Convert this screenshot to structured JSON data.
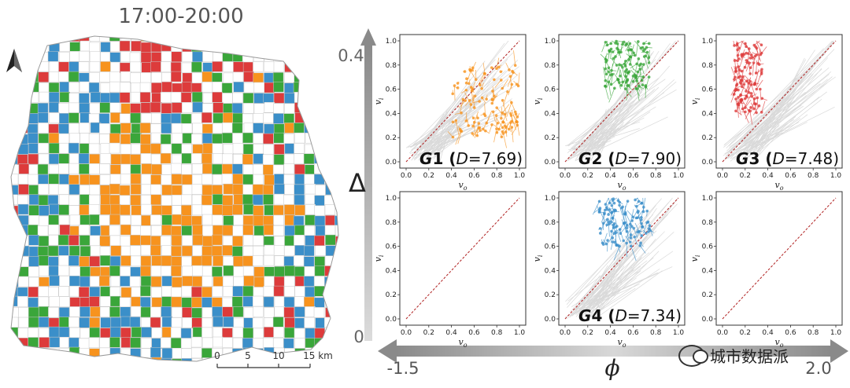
{
  "map": {
    "title": "17:00-20:00",
    "scale_ticks": [
      "0",
      "5",
      "10",
      "15 km"
    ],
    "colors": {
      "G1": "#f7931e",
      "G2": "#3aa63a",
      "G3": "#dd3b3b",
      "G4": "#3b8fc9",
      "empty": "#ffffff",
      "border": "#c8c8c8"
    }
  },
  "axes": {
    "vertical": {
      "symbol": "Δ",
      "top_label": "0.4",
      "bottom_label": "0"
    },
    "horizontal": {
      "symbol": "ϕ",
      "left_label": "-1.5",
      "right_label": "2.0"
    }
  },
  "watermark": "城市数据派",
  "chart_data": [
    {
      "type": "scatter",
      "panel": "row1-col1",
      "group": "G1",
      "d_value": "7.69",
      "xlabel": "v_o",
      "ylabel": "v_i",
      "xlim": [
        0,
        1
      ],
      "ylim": [
        0,
        1
      ],
      "xticks": [
        "0.0",
        "0.2",
        "0.4",
        "0.6",
        "0.8",
        "1.0"
      ],
      "yticks": [
        "0.0",
        "0.2",
        "0.4",
        "0.6",
        "0.8",
        "1.0"
      ],
      "color": "#f7931e",
      "point_cloud": {
        "x_range": [
          0.4,
          1.0
        ],
        "y_range": [
          0.2,
          0.8
        ]
      }
    },
    {
      "type": "scatter",
      "panel": "row1-col2",
      "group": "G2",
      "d_value": "7.90",
      "xlabel": "v_o",
      "ylabel": "v_i",
      "xlim": [
        0,
        1
      ],
      "ylim": [
        0,
        1
      ],
      "xticks": [
        "0.0",
        "0.2",
        "0.4",
        "0.6",
        "0.8",
        "1.0"
      ],
      "yticks": [
        "0.0",
        "0.2",
        "0.4",
        "0.6",
        "0.8",
        "1.0"
      ],
      "color": "#3aa63a",
      "point_cloud": {
        "x_range": [
          0.35,
          0.75
        ],
        "y_range": [
          0.6,
          1.0
        ]
      }
    },
    {
      "type": "scatter",
      "panel": "row1-col3",
      "group": "G3",
      "d_value": "7.48",
      "xlabel": "v_o",
      "ylabel": "v_i",
      "xlim": [
        0,
        1
      ],
      "ylim": [
        0,
        1
      ],
      "xticks": [
        "0.0",
        "0.2",
        "0.4",
        "0.6",
        "0.8",
        "1.0"
      ],
      "yticks": [
        "0.0",
        "0.2",
        "0.4",
        "0.6",
        "0.8",
        "1.0"
      ],
      "color": "#dd3b3b",
      "point_cloud": {
        "x_range": [
          0.1,
          0.35
        ],
        "y_range": [
          0.4,
          1.0
        ]
      }
    },
    {
      "type": "scatter",
      "panel": "row2-col1",
      "group": "",
      "d_value": "",
      "xlabel": "v_o",
      "ylabel": "v_i",
      "xlim": [
        0,
        1
      ],
      "ylim": [
        0,
        1
      ],
      "xticks": [
        "0.0",
        "0.2",
        "0.4",
        "0.6",
        "0.8",
        "1.0"
      ],
      "yticks": [
        "0.0",
        "0.2",
        "0.4",
        "0.6",
        "0.8",
        "1.0"
      ],
      "color": ""
    },
    {
      "type": "scatter",
      "panel": "row2-col2",
      "group": "G4",
      "d_value": "7.34",
      "xlabel": "v_o",
      "ylabel": "v_i",
      "xlim": [
        0,
        1
      ],
      "ylim": [
        0,
        1
      ],
      "xticks": [
        "0.0",
        "0.2",
        "0.4",
        "0.6",
        "0.8",
        "1.0"
      ],
      "yticks": [
        "0.0",
        "0.2",
        "0.4",
        "0.6",
        "0.8",
        "1.0"
      ],
      "color": "#3b8fc9",
      "point_cloud": {
        "x_range": [
          0.3,
          0.75
        ],
        "y_range": [
          0.6,
          1.0
        ]
      }
    },
    {
      "type": "scatter",
      "panel": "row2-col3",
      "group": "",
      "d_value": "",
      "xlabel": "v_o",
      "ylabel": "v_i",
      "xlim": [
        0,
        1
      ],
      "ylim": [
        0,
        1
      ],
      "xticks": [
        "0.0",
        "0.2",
        "0.4",
        "0.6",
        "0.8",
        "1.0"
      ],
      "yticks": [
        "0.0",
        "0.2",
        "0.4",
        "0.6",
        "0.8",
        "1.0"
      ],
      "color": ""
    }
  ]
}
